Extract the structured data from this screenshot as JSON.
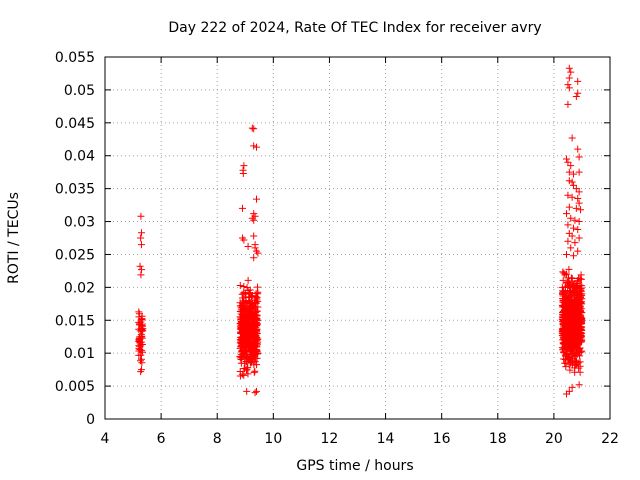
{
  "chart_data": {
    "type": "scatter",
    "title": "Day 222 of 2024, Rate Of TEC Index for receiver avry",
    "xlabel": "GPS time / hours",
    "ylabel": "ROTI / TECUs",
    "xlim": [
      4,
      22
    ],
    "ylim": [
      0,
      0.055
    ],
    "grid": true,
    "marker": "+",
    "color": "#ff0000",
    "x_ticks": [
      "4",
      "6",
      "8",
      "10",
      "12",
      "14",
      "16",
      "18",
      "20",
      "22"
    ],
    "y_ticks": [
      "0",
      "0.005",
      "0.01",
      "0.015",
      "0.02",
      "0.025",
      "0.03",
      "0.035",
      "0.04",
      "0.045",
      "0.05",
      "0.055"
    ],
    "clusters": [
      {
        "x_range": [
          5.2,
          5.35
        ],
        "y_range": [
          0.007,
          0.018
        ],
        "count": 50,
        "extra": [
          [
            5.28,
            0.0308
          ],
          [
            5.3,
            0.0283
          ],
          [
            5.27,
            0.0275
          ],
          [
            5.3,
            0.0265
          ],
          [
            5.25,
            0.0232
          ],
          [
            5.3,
            0.0227
          ],
          [
            5.28,
            0.0219
          ],
          [
            5.27,
            0.0072
          ],
          [
            5.3,
            0.0075
          ]
        ]
      },
      {
        "x_range": [
          8.8,
          9.45
        ],
        "y_range": [
          0.005,
          0.022
        ],
        "count": 500,
        "extra": [
          [
            9.25,
            0.0442
          ],
          [
            9.3,
            0.0441
          ],
          [
            9.3,
            0.0415
          ],
          [
            9.4,
            0.0413
          ],
          [
            8.95,
            0.0385
          ],
          [
            8.92,
            0.0378
          ],
          [
            8.93,
            0.0373
          ],
          [
            8.9,
            0.032
          ],
          [
            9.4,
            0.0334
          ],
          [
            9.3,
            0.0312
          ],
          [
            9.35,
            0.0308
          ],
          [
            9.3,
            0.0302
          ],
          [
            9.25,
            0.0305
          ],
          [
            8.9,
            0.0275
          ],
          [
            8.95,
            0.0272
          ],
          [
            9.3,
            0.0278
          ],
          [
            9.35,
            0.0265
          ],
          [
            9.35,
            0.026
          ],
          [
            9.1,
            0.0262
          ],
          [
            9.4,
            0.0255
          ],
          [
            9.45,
            0.0252
          ],
          [
            9.3,
            0.0245
          ],
          [
            9.05,
            0.0042
          ],
          [
            9.4,
            0.0042
          ],
          [
            9.35,
            0.004
          ]
        ]
      },
      {
        "x_range": [
          20.3,
          21.0
        ],
        "y_range": [
          0.006,
          0.024
        ],
        "count": 750,
        "extra": [
          [
            20.55,
            0.0533
          ],
          [
            20.6,
            0.0527
          ],
          [
            20.55,
            0.0518
          ],
          [
            20.85,
            0.0513
          ],
          [
            20.5,
            0.0508
          ],
          [
            20.55,
            0.0503
          ],
          [
            20.85,
            0.0495
          ],
          [
            20.8,
            0.049
          ],
          [
            20.5,
            0.0478
          ],
          [
            20.65,
            0.0427
          ],
          [
            20.85,
            0.041
          ],
          [
            20.45,
            0.0395
          ],
          [
            20.9,
            0.0398
          ],
          [
            20.5,
            0.039
          ],
          [
            20.6,
            0.0385
          ],
          [
            20.55,
            0.0375
          ],
          [
            20.7,
            0.0372
          ],
          [
            20.9,
            0.0375
          ],
          [
            20.55,
            0.0362
          ],
          [
            20.65,
            0.036
          ],
          [
            20.7,
            0.0355
          ],
          [
            20.8,
            0.035
          ],
          [
            20.9,
            0.0345
          ],
          [
            20.5,
            0.034
          ],
          [
            20.65,
            0.0337
          ],
          [
            20.85,
            0.0335
          ],
          [
            20.9,
            0.0328
          ],
          [
            20.55,
            0.0322
          ],
          [
            20.8,
            0.032
          ],
          [
            20.95,
            0.0318
          ],
          [
            20.45,
            0.0312
          ],
          [
            20.6,
            0.0305
          ],
          [
            20.75,
            0.0302
          ],
          [
            20.9,
            0.03
          ],
          [
            20.5,
            0.0295
          ],
          [
            20.7,
            0.029
          ],
          [
            20.85,
            0.0288
          ],
          [
            20.55,
            0.0282
          ],
          [
            20.65,
            0.0278
          ],
          [
            20.9,
            0.0275
          ],
          [
            20.5,
            0.027
          ],
          [
            20.75,
            0.0268
          ],
          [
            20.6,
            0.026
          ],
          [
            20.85,
            0.0255
          ],
          [
            20.45,
            0.025
          ],
          [
            20.7,
            0.0248
          ],
          [
            20.55,
            0.0042
          ],
          [
            20.45,
            0.0038
          ],
          [
            20.65,
            0.0048
          ],
          [
            20.9,
            0.0052
          ]
        ]
      }
    ]
  }
}
